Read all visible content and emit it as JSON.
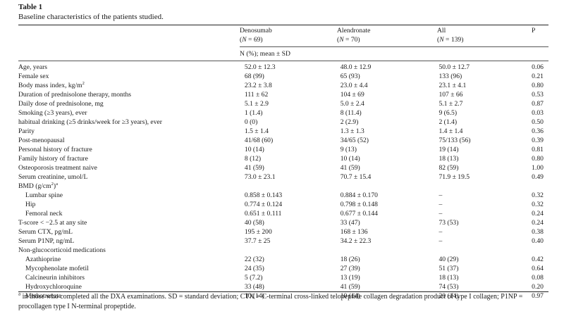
{
  "caption": {
    "label": "Table 1",
    "title": "Baseline characteristics of the patients studied."
  },
  "columns": [
    {
      "name": "Denosumab",
      "n": "(N = 69)"
    },
    {
      "name": "Alendronate",
      "n": "(N = 70)"
    },
    {
      "name": "All",
      "n": "(N = 139)"
    },
    {
      "name": "P",
      "n": ""
    }
  ],
  "units_label": "N (%); mean ± SD",
  "rows": [
    {
      "label": "Age, years",
      "v": [
        "52.0 ± 12.3",
        "48.0 ± 12.9",
        "50.0 ± 12.7",
        "0.06"
      ]
    },
    {
      "label": "Female sex",
      "v": [
        "68 (99)",
        "65 (93)",
        "133 (96)",
        "0.21"
      ]
    },
    {
      "label": "Body mass index, kg/m",
      "sup": "2",
      "v": [
        "23.2 ± 3.8",
        "23.0 ± 4.4",
        "23.1 ± 4.1",
        "0.80"
      ]
    },
    {
      "label": "Duration of prednisolone therapy, months",
      "v": [
        "111 ± 62",
        "104 ± 69",
        "107 ± 66",
        "0.53"
      ]
    },
    {
      "label": "Daily dose of prednisolone, mg",
      "v": [
        "5.1 ± 2.9",
        "5.0 ± 2.4",
        "5.1 ± 2.7",
        "0.87"
      ]
    },
    {
      "label": "Smoking (≥3 years), ever",
      "v": [
        "1 (1.4)",
        "8 (11.4)",
        "9 (6.5)",
        "0.03"
      ]
    },
    {
      "label": "habitual drinking (≥5 drinks/week for ≥3 years), ever",
      "v": [
        "0 (0)",
        "2 (2.9)",
        "2 (1.4)",
        "0.50"
      ]
    },
    {
      "label": "Parity",
      "v": [
        "1.5 ± 1.4",
        "1.3 ± 1.3",
        "1.4 ± 1.4",
        "0.36"
      ]
    },
    {
      "label": "Post-menopausal",
      "v": [
        "41/68 (60)",
        "34/65 (52)",
        "75/133 (56)",
        "0.39"
      ]
    },
    {
      "label": "Personal history of fracture",
      "v": [
        "10 (14)",
        "9 (13)",
        "19 (14)",
        "0.81"
      ]
    },
    {
      "label": "Family history of fracture",
      "v": [
        "8 (12)",
        "10 (14)",
        "18 (13)",
        "0.80"
      ]
    },
    {
      "label": "Osteoporosis treatment naive",
      "v": [
        "41 (59)",
        "41 (59)",
        "82 (59)",
        "1.00"
      ]
    },
    {
      "label": "Serum creatinine, umol/L",
      "v": [
        "73.0 ± 23.1",
        "70.7 ± 15.4",
        "71.9 ± 19.5",
        "0.49"
      ]
    },
    {
      "label": "BMD (g/cm",
      "sup": "2",
      "label_after": ")",
      "sup2": "a",
      "v": [
        "",
        "",
        "",
        ""
      ]
    },
    {
      "label": "Lumbar spine",
      "indent": true,
      "v": [
        "0.858 ± 0.143",
        "0.884 ± 0.170",
        "–",
        "0.32"
      ]
    },
    {
      "label": "Hip",
      "indent": true,
      "v": [
        "0.774 ± 0.124",
        "0.798 ± 0.148",
        "–",
        "0.32"
      ]
    },
    {
      "label": "Femoral neck",
      "indent": true,
      "v": [
        "0.651 ± 0.111",
        "0.677 ± 0.144",
        "–",
        "0.24"
      ]
    },
    {
      "label": "T-score < −2.5 at any site",
      "v": [
        "40 (58)",
        "33 (47)",
        "73 (53)",
        "0.24"
      ]
    },
    {
      "label": "Serum CTX, pg/mL",
      "v": [
        "195 ± 200",
        "168 ± 136",
        "–",
        "0.38"
      ]
    },
    {
      "label": "Serum P1NP, ng/mL",
      "v": [
        "37.7 ± 25",
        "34.2 ± 22.3",
        "–",
        "0.40"
      ]
    },
    {
      "label": "Non-glucocorticoid medications",
      "v": [
        "",
        "",
        "",
        ""
      ]
    },
    {
      "label": "Azathioprine",
      "indent": true,
      "v": [
        "22 (32)",
        "18 (26)",
        "40 (29)",
        "0.42"
      ]
    },
    {
      "label": "Mycophenolate mofetil",
      "indent": true,
      "v": [
        "24 (35)",
        "27 (39)",
        "51 (37)",
        "0.64"
      ]
    },
    {
      "label": "Calcineurin inhibitors",
      "indent": true,
      "v": [
        "5 (7.2)",
        "13 (19)",
        "18 (13)",
        "0.08"
      ]
    },
    {
      "label": "Hydroxychloroquine",
      "indent": true,
      "v": [
        "33 (48)",
        "41 (59)",
        "74 (53)",
        "0.20"
      ]
    },
    {
      "label": "Methotrexate",
      "indent": true,
      "v": [
        "10 (14)",
        "10 (14)",
        "20 (14)",
        "0.97"
      ]
    }
  ],
  "footnote": {
    "marker": "a",
    "text": " in those who completed all the DXA examinations. SD = standard deviation; CTX = C-terminal cross-linked telopeptide collagen degradation product of type I collagen; P1NP = procollagen type I N-terminal propeptide."
  }
}
